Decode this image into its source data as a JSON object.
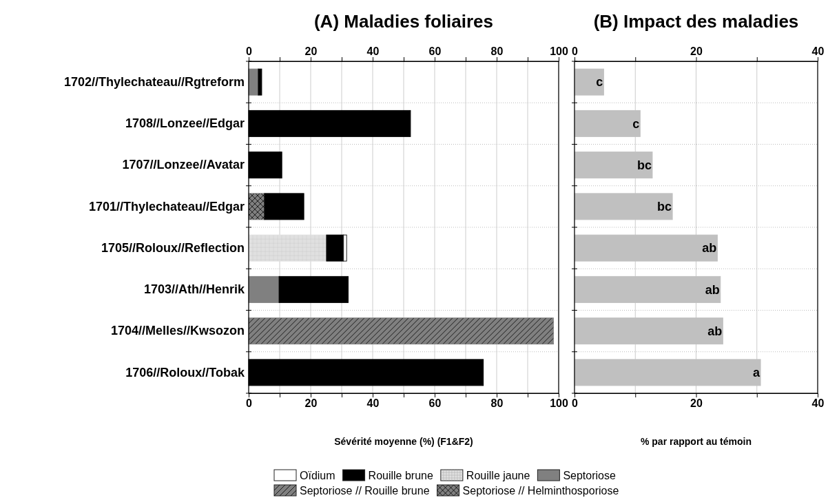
{
  "chart_data": [
    {
      "type": "bar",
      "title": "(A) Maladies foliaires",
      "xlabel": "Sévérité moyenne (%) (F1&F2)",
      "orientation": "horizontal",
      "stacked": true,
      "categories": [
        "1702//Thylechateau//Rgtreform",
        "1708//Lonzee//Edgar",
        "1707//Lonzee//Avatar",
        "1701//Thylechateau//Edgar",
        "1705//Roloux//Reflection",
        "1703//Ath//Henrik",
        "1704//Melles//Kwsozon",
        "1706//Roloux//Tobak"
      ],
      "series": [
        {
          "name": "Septoriose // Helminthosporiose",
          "color": "#808080",
          "values": [
            null,
            null,
            null,
            5.1,
            null,
            null,
            null,
            null
          ]
        },
        {
          "name": "Septoriose // Rouille brune",
          "color": "#808080",
          "values": [
            null,
            null,
            null,
            null,
            null,
            null,
            98.3,
            null
          ]
        },
        {
          "name": "Septoriose",
          "color": "#808080",
          "values": [
            3.1,
            null,
            null,
            null,
            null,
            9.8,
            null,
            null
          ]
        },
        {
          "name": "Rouille jaune",
          "color": "#e0e0e0",
          "values": [
            null,
            null,
            null,
            null,
            25.1,
            null,
            null,
            null
          ]
        },
        {
          "name": "Rouille brune",
          "color": "#000000",
          "values": [
            1.1,
            52.2,
            10.7,
            12.7,
            5.5,
            22.3,
            null,
            75.7
          ]
        },
        {
          "name": "Oïdium",
          "color": "#ffffff",
          "values": [
            null,
            null,
            null,
            null,
            1.0,
            null,
            null,
            null
          ]
        }
      ],
      "xlim": [
        0,
        100
      ],
      "xticks": [
        0,
        {
          "value": 10,
          "label": null
        },
        20,
        {
          "value": 30,
          "label": null
        },
        40,
        {
          "value": 50,
          "label": null
        },
        60,
        {
          "value": 70,
          "label": null
        },
        80,
        {
          "value": 90,
          "label": null
        },
        100
      ],
      "x2lim": [
        0,
        100
      ],
      "x2ticks": [
        0,
        {
          "value": 10,
          "label": null
        },
        20,
        {
          "value": 30,
          "label": null
        },
        40,
        {
          "value": 50,
          "label": null
        },
        60,
        {
          "value": 70,
          "label": null
        },
        80,
        {
          "value": 90,
          "label": null
        },
        100
      ],
      "grid": true,
      "legend": "bottom"
    },
    {
      "type": "bar",
      "title": "(B) Impact des maladies",
      "xlabel": "% par rapport au témoin",
      "orientation": "horizontal",
      "tick_labels": "x",
      "categories": [
        null,
        null,
        null,
        null,
        null,
        null,
        null,
        null
      ],
      "values": [
        4.8,
        10.8,
        12.8,
        16.1,
        23.5,
        24.0,
        24.4,
        30.6
      ],
      "color": "#c0c0c0",
      "value_labels": [
        "c",
        "c",
        "bc",
        "bc",
        "ab",
        "ab",
        "ab",
        "a"
      ],
      "xlim": [
        0,
        40
      ],
      "xticks": [
        0,
        {
          "value": 10,
          "label": null
        },
        20,
        {
          "value": 30,
          "label": null
        },
        40
      ],
      "x2lim": [
        0,
        40
      ],
      "x2ticks": [
        0,
        {
          "value": 10,
          "label": null
        },
        20,
        {
          "value": 30,
          "label": null
        },
        40
      ],
      "grid": true
    }
  ]
}
